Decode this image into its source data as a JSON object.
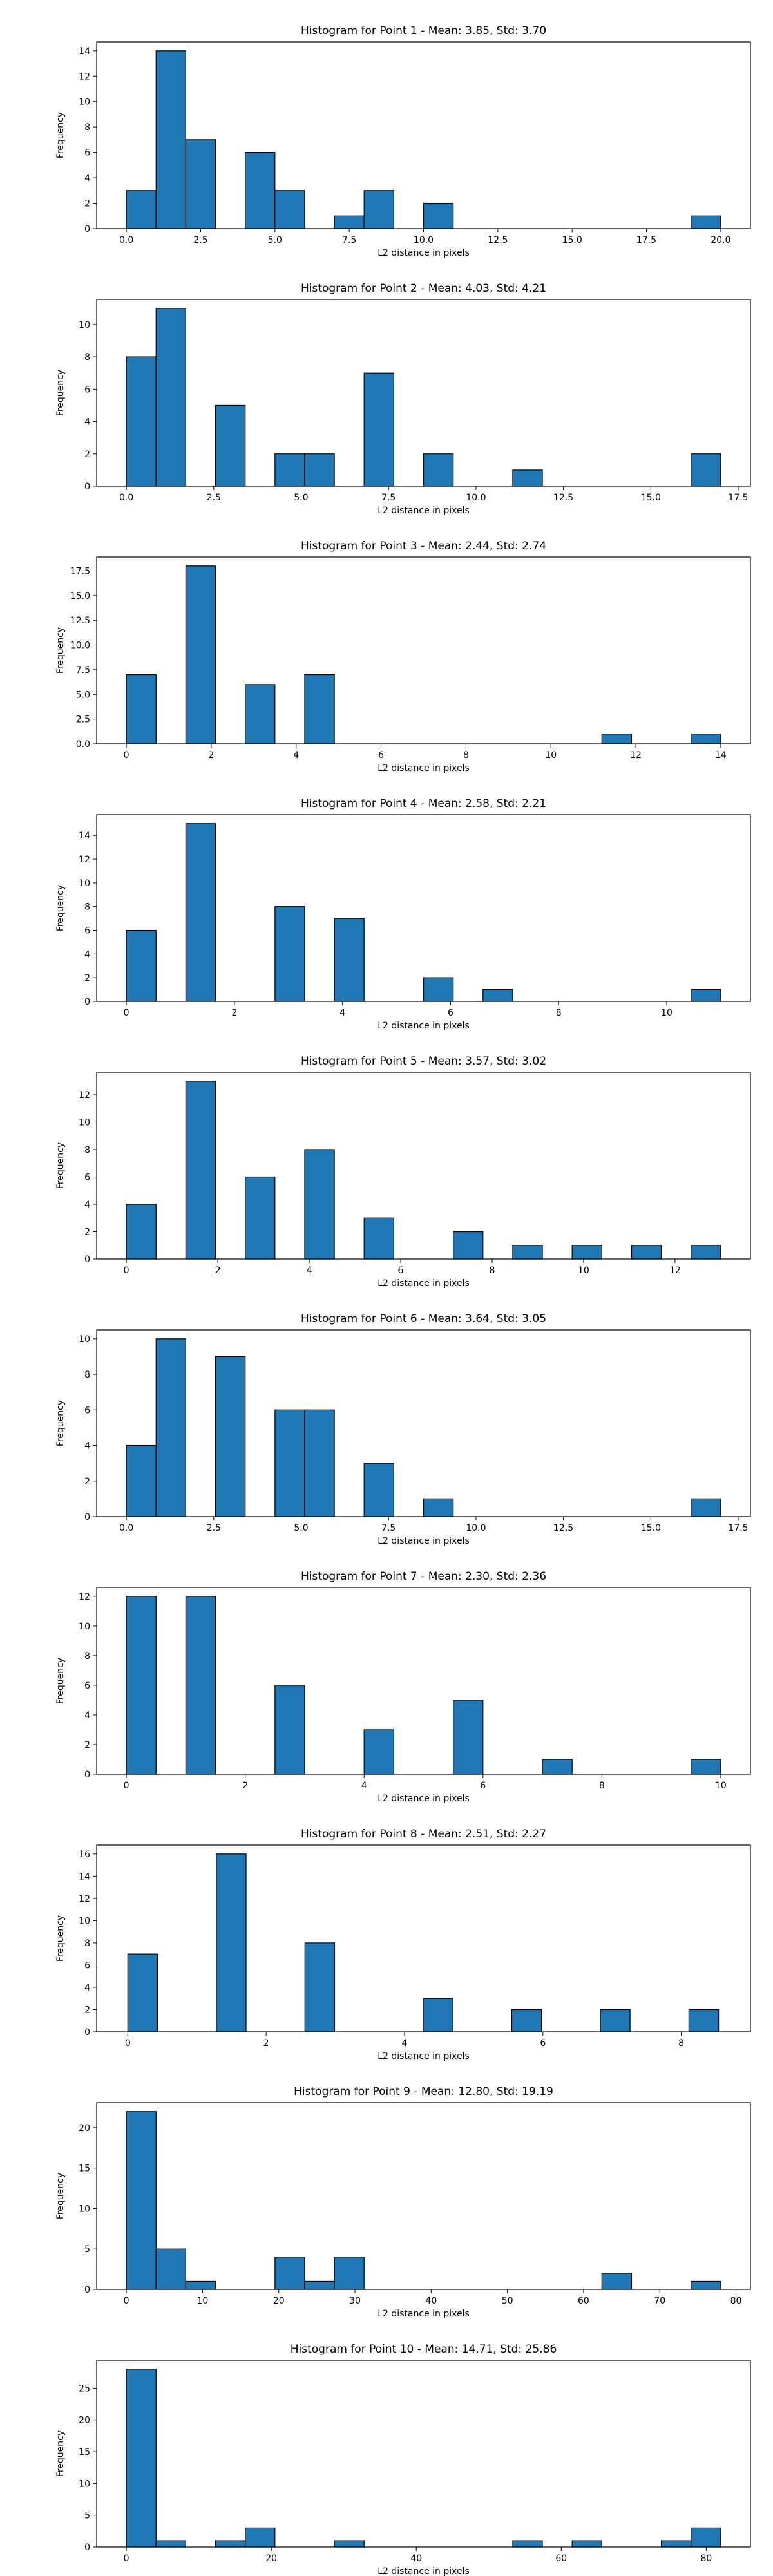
{
  "figure": {
    "xlabel": "L2 distance in pixels",
    "ylabel": "Frequency",
    "bar_color": "#1f77b4",
    "edge_color": "#000000"
  },
  "chart_data": [
    {
      "type": "bar",
      "title": "Histogram for Point 1 - Mean: 3.85, Std: 3.70",
      "xlabel": "L2 distance in pixels",
      "ylabel": "Frequency",
      "xlim": [
        -1,
        21
      ],
      "ylim": [
        0,
        14.7
      ],
      "xticks": [
        0,
        2.5,
        5,
        7.5,
        10,
        12.5,
        15,
        17.5,
        20
      ],
      "xtick_labels": [
        "0.0",
        "2.5",
        "5.0",
        "7.5",
        "10.0",
        "12.5",
        "15.0",
        "17.5",
        "20.0"
      ],
      "yticks": [
        0,
        2,
        4,
        6,
        8,
        10,
        12,
        14
      ],
      "bars": [
        {
          "x0": 0.0,
          "x1": 1.0,
          "value": 3
        },
        {
          "x0": 1.0,
          "x1": 2.0,
          "value": 14
        },
        {
          "x0": 2.0,
          "x1": 3.0,
          "value": 7
        },
        {
          "x0": 4.0,
          "x1": 5.0,
          "value": 6
        },
        {
          "x0": 5.0,
          "x1": 6.0,
          "value": 3
        },
        {
          "x0": 7.0,
          "x1": 8.0,
          "value": 1
        },
        {
          "x0": 8.0,
          "x1": 9.0,
          "value": 3
        },
        {
          "x0": 10.0,
          "x1": 11.0,
          "value": 2
        },
        {
          "x0": 19.0,
          "x1": 20.0,
          "value": 1
        }
      ]
    },
    {
      "type": "bar",
      "title": "Histogram for Point 2 - Mean: 4.03, Std: 4.21",
      "xlabel": "L2 distance in pixels",
      "ylabel": "Frequency",
      "xlim": [
        -0.85,
        17.85
      ],
      "ylim": [
        0,
        11.55
      ],
      "xticks": [
        0,
        2.5,
        5,
        7.5,
        10,
        12.5,
        15,
        17.5
      ],
      "xtick_labels": [
        "0.0",
        "2.5",
        "5.0",
        "7.5",
        "10.0",
        "12.5",
        "15.0",
        "17.5"
      ],
      "yticks": [
        0,
        2,
        4,
        6,
        8,
        10
      ],
      "bars": [
        {
          "x0": 0.0,
          "x1": 0.85,
          "value": 8
        },
        {
          "x0": 0.85,
          "x1": 1.7,
          "value": 11
        },
        {
          "x0": 2.55,
          "x1": 3.4,
          "value": 5
        },
        {
          "x0": 4.25,
          "x1": 5.1,
          "value": 2
        },
        {
          "x0": 5.1,
          "x1": 5.95,
          "value": 2
        },
        {
          "x0": 6.8,
          "x1": 7.65,
          "value": 7
        },
        {
          "x0": 8.5,
          "x1": 9.35,
          "value": 2
        },
        {
          "x0": 11.05,
          "x1": 11.9,
          "value": 1
        },
        {
          "x0": 16.15,
          "x1": 17.0,
          "value": 2
        }
      ]
    },
    {
      "type": "bar",
      "title": "Histogram for Point 3 - Mean: 2.44, Std: 2.74",
      "xlabel": "L2 distance in pixels",
      "ylabel": "Frequency",
      "xlim": [
        -0.7,
        14.7
      ],
      "ylim": [
        0,
        18.9
      ],
      "xticks": [
        0,
        2,
        4,
        6,
        8,
        10,
        12,
        14
      ],
      "xtick_labels": [
        "0",
        "2",
        "4",
        "6",
        "8",
        "10",
        "12",
        "14"
      ],
      "yticks": [
        0,
        2.5,
        5,
        7.5,
        10,
        12.5,
        15,
        17.5
      ],
      "ytick_labels": [
        "0.0",
        "2.5",
        "5.0",
        "7.5",
        "10.0",
        "12.5",
        "15.0",
        "17.5"
      ],
      "bars": [
        {
          "x0": 0.0,
          "x1": 0.7,
          "value": 7
        },
        {
          "x0": 1.4,
          "x1": 2.1,
          "value": 18
        },
        {
          "x0": 2.8,
          "x1": 3.5,
          "value": 6
        },
        {
          "x0": 4.2,
          "x1": 4.9,
          "value": 7
        },
        {
          "x0": 11.2,
          "x1": 11.9,
          "value": 1
        },
        {
          "x0": 13.3,
          "x1": 14.0,
          "value": 1
        }
      ]
    },
    {
      "type": "bar",
      "title": "Histogram for Point 4 - Mean: 2.58, Std: 2.21",
      "xlabel": "L2 distance in pixels",
      "ylabel": "Frequency",
      "xlim": [
        -0.55,
        11.55
      ],
      "ylim": [
        0,
        15.75
      ],
      "xticks": [
        0,
        2,
        4,
        6,
        8,
        10
      ],
      "xtick_labels": [
        "0",
        "2",
        "4",
        "6",
        "8",
        "10"
      ],
      "yticks": [
        0,
        2,
        4,
        6,
        8,
        10,
        12,
        14
      ],
      "bars": [
        {
          "x0": 0.0,
          "x1": 0.55,
          "value": 6
        },
        {
          "x0": 1.1,
          "x1": 1.65,
          "value": 15
        },
        {
          "x0": 2.75,
          "x1": 3.3,
          "value": 8
        },
        {
          "x0": 3.85,
          "x1": 4.4,
          "value": 7
        },
        {
          "x0": 5.5,
          "x1": 6.05,
          "value": 2
        },
        {
          "x0": 6.6,
          "x1": 7.15,
          "value": 1
        },
        {
          "x0": 10.45,
          "x1": 11.0,
          "value": 1
        }
      ]
    },
    {
      "type": "bar",
      "title": "Histogram for Point 5 - Mean: 3.57, Std: 3.02",
      "xlabel": "L2 distance in pixels",
      "ylabel": "Frequency",
      "xlim": [
        -0.65,
        13.65
      ],
      "ylim": [
        0,
        13.65
      ],
      "xticks": [
        0,
        2,
        4,
        6,
        8,
        10,
        12
      ],
      "xtick_labels": [
        "0",
        "2",
        "4",
        "6",
        "8",
        "10",
        "12"
      ],
      "yticks": [
        0,
        2,
        4,
        6,
        8,
        10,
        12
      ],
      "bars": [
        {
          "x0": 0.0,
          "x1": 0.65,
          "value": 4
        },
        {
          "x0": 1.3,
          "x1": 1.95,
          "value": 13
        },
        {
          "x0": 2.6,
          "x1": 3.25,
          "value": 6
        },
        {
          "x0": 3.9,
          "x1": 4.55,
          "value": 8
        },
        {
          "x0": 5.2,
          "x1": 5.85,
          "value": 3
        },
        {
          "x0": 7.15,
          "x1": 7.8,
          "value": 2
        },
        {
          "x0": 8.45,
          "x1": 9.1,
          "value": 1
        },
        {
          "x0": 9.75,
          "x1": 10.4,
          "value": 1
        },
        {
          "x0": 11.05,
          "x1": 11.7,
          "value": 1
        },
        {
          "x0": 12.35,
          "x1": 13.0,
          "value": 1
        }
      ]
    },
    {
      "type": "bar",
      "title": "Histogram for Point 6 - Mean: 3.64, Std: 3.05",
      "xlabel": "L2 distance in pixels",
      "ylabel": "Frequency",
      "xlim": [
        -0.85,
        17.85
      ],
      "ylim": [
        0,
        10.5
      ],
      "xticks": [
        0,
        2.5,
        5,
        7.5,
        10,
        12.5,
        15,
        17.5
      ],
      "xtick_labels": [
        "0.0",
        "2.5",
        "5.0",
        "7.5",
        "10.0",
        "12.5",
        "15.0",
        "17.5"
      ],
      "yticks": [
        0,
        2,
        4,
        6,
        8,
        10
      ],
      "bars": [
        {
          "x0": 0.0,
          "x1": 0.85,
          "value": 4
        },
        {
          "x0": 0.85,
          "x1": 1.7,
          "value": 10
        },
        {
          "x0": 2.55,
          "x1": 3.4,
          "value": 9
        },
        {
          "x0": 4.25,
          "x1": 5.1,
          "value": 6
        },
        {
          "x0": 5.1,
          "x1": 5.95,
          "value": 6
        },
        {
          "x0": 6.8,
          "x1": 7.65,
          "value": 3
        },
        {
          "x0": 8.5,
          "x1": 9.35,
          "value": 1
        },
        {
          "x0": 16.15,
          "x1": 17.0,
          "value": 1
        }
      ]
    },
    {
      "type": "bar",
      "title": "Histogram for Point 7 - Mean: 2.30, Std: 2.36",
      "xlabel": "L2 distance in pixels",
      "ylabel": "Frequency",
      "xlim": [
        -0.5,
        10.5
      ],
      "ylim": [
        0,
        12.6
      ],
      "xticks": [
        0,
        2,
        4,
        6,
        8,
        10
      ],
      "xtick_labels": [
        "0",
        "2",
        "4",
        "6",
        "8",
        "10"
      ],
      "yticks": [
        0,
        2,
        4,
        6,
        8,
        10,
        12
      ],
      "bars": [
        {
          "x0": 0.0,
          "x1": 0.5,
          "value": 12
        },
        {
          "x0": 1.0,
          "x1": 1.5,
          "value": 12
        },
        {
          "x0": 2.5,
          "x1": 3.0,
          "value": 6
        },
        {
          "x0": 4.0,
          "x1": 4.5,
          "value": 3
        },
        {
          "x0": 5.5,
          "x1": 6.0,
          "value": 5
        },
        {
          "x0": 7.0,
          "x1": 7.5,
          "value": 1
        },
        {
          "x0": 9.5,
          "x1": 10.0,
          "value": 1
        }
      ]
    },
    {
      "type": "bar",
      "title": "Histogram for Point 8 - Mean: 2.51, Std: 2.27",
      "xlabel": "L2 distance in pixels",
      "ylabel": "Frequency",
      "xlim": [
        -0.45,
        9.0
      ],
      "ylim": [
        0,
        16.8
      ],
      "xticks": [
        0,
        2,
        4,
        6,
        8
      ],
      "xtick_labels": [
        "0",
        "2",
        "4",
        "6",
        "8"
      ],
      "yticks": [
        0,
        2,
        4,
        6,
        8,
        10,
        12,
        14,
        16
      ],
      "bars": [
        {
          "x0": 0.0,
          "x1": 0.43,
          "value": 7
        },
        {
          "x0": 1.28,
          "x1": 1.71,
          "value": 16
        },
        {
          "x0": 2.56,
          "x1": 2.99,
          "value": 8
        },
        {
          "x0": 4.27,
          "x1": 4.7,
          "value": 3
        },
        {
          "x0": 5.55,
          "x1": 5.98,
          "value": 2
        },
        {
          "x0": 6.83,
          "x1": 7.26,
          "value": 2
        },
        {
          "x0": 8.11,
          "x1": 8.54,
          "value": 2
        }
      ]
    },
    {
      "type": "bar",
      "title": "Histogram for Point 9 - Mean: 12.80, Std: 19.19",
      "xlabel": "L2 distance in pixels",
      "ylabel": "Frequency",
      "xlim": [
        -3.9,
        81.9
      ],
      "ylim": [
        0,
        23.1
      ],
      "xticks": [
        0,
        10,
        20,
        30,
        40,
        50,
        60,
        70,
        80
      ],
      "xtick_labels": [
        "0",
        "10",
        "20",
        "30",
        "40",
        "50",
        "60",
        "70",
        "80"
      ],
      "yticks": [
        0,
        5,
        10,
        15,
        20
      ],
      "bars": [
        {
          "x0": 0.0,
          "x1": 3.9,
          "value": 22
        },
        {
          "x0": 3.9,
          "x1": 7.8,
          "value": 5
        },
        {
          "x0": 7.8,
          "x1": 11.7,
          "value": 1
        },
        {
          "x0": 19.5,
          "x1": 23.4,
          "value": 4
        },
        {
          "x0": 23.4,
          "x1": 27.3,
          "value": 1
        },
        {
          "x0": 27.3,
          "x1": 31.2,
          "value": 4
        },
        {
          "x0": 62.4,
          "x1": 66.3,
          "value": 2
        },
        {
          "x0": 74.1,
          "x1": 78.0,
          "value": 1
        }
      ]
    },
    {
      "type": "bar",
      "title": "Histogram for Point 10 - Mean: 14.71, Std: 25.86",
      "xlabel": "L2 distance in pixels",
      "ylabel": "Frequency",
      "xlim": [
        -4.1,
        86.1
      ],
      "ylim": [
        0,
        29.4
      ],
      "xticks": [
        0,
        20,
        40,
        60,
        80
      ],
      "xtick_labels": [
        "0",
        "20",
        "40",
        "60",
        "80"
      ],
      "yticks": [
        0,
        5,
        10,
        15,
        20,
        25
      ],
      "bars": [
        {
          "x0": 0.0,
          "x1": 4.1,
          "value": 28
        },
        {
          "x0": 4.1,
          "x1": 8.2,
          "value": 1
        },
        {
          "x0": 12.3,
          "x1": 16.4,
          "value": 1
        },
        {
          "x0": 16.4,
          "x1": 20.5,
          "value": 3
        },
        {
          "x0": 28.7,
          "x1": 32.8,
          "value": 1
        },
        {
          "x0": 53.3,
          "x1": 57.4,
          "value": 1
        },
        {
          "x0": 61.5,
          "x1": 65.6,
          "value": 1
        },
        {
          "x0": 73.8,
          "x1": 77.9,
          "value": 1
        },
        {
          "x0": 77.9,
          "x1": 82.0,
          "value": 3
        }
      ]
    }
  ]
}
